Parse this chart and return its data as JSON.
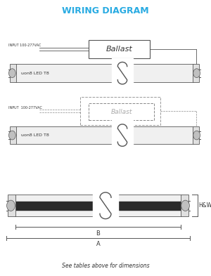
{
  "title": "WIRING DIAGRAM",
  "title_color": "#29ABE2",
  "bg_color": "#FFFFFF",
  "line_color": "#555555",
  "text_color": "#333333",
  "subtitle": "See tables above for dimensions",
  "hw_label": "H&W",
  "tube1_label": "uon8 LED T8",
  "tube2_label": "uon8 LED T8",
  "ballast_label": "Ballast",
  "input_label1": "INPUT 100-277VAC",
  "input_label2": "INPUT  100-277VAC",
  "fig_w": 3.0,
  "fig_h": 3.93,
  "dpi": 100
}
